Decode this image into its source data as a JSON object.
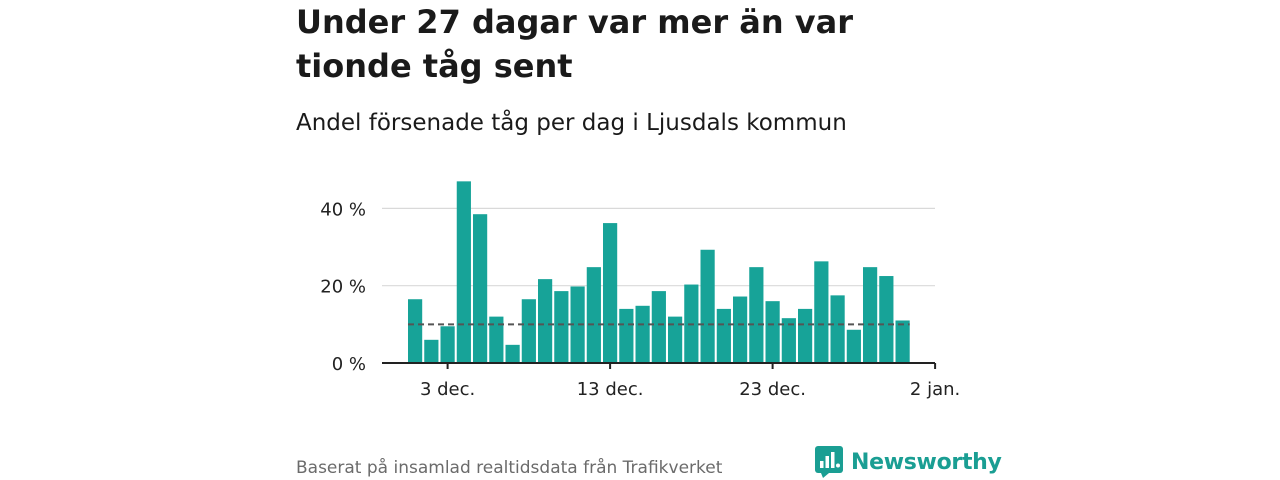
{
  "title": "Under 27 dagar var mer än var tionde tåg sent",
  "subtitle": "Andel försenade tåg per dag i Ljusdals kommun",
  "source": "Baserat på insamlad realtidsdata från Trafikverket",
  "brand": {
    "name": "Newsworthy",
    "color": "#1a9e93"
  },
  "colors": {
    "bar": "#17a398",
    "reference_line": "#555555",
    "grid": "#d9d9d9",
    "axis": "#222222"
  },
  "chart_data": {
    "type": "bar",
    "title": "Under 27 dagar var mer än var tionde tåg sent",
    "subtitle": "Andel försenade tåg per dag i Ljusdals kommun",
    "xlabel": "",
    "ylabel": "",
    "x": [
      "1 dec.",
      "2 dec.",
      "3 dec.",
      "4 dec.",
      "5 dec.",
      "6 dec.",
      "7 dec.",
      "8 dec.",
      "9 dec.",
      "10 dec.",
      "11 dec.",
      "12 dec.",
      "13 dec.",
      "14 dec.",
      "15 dec.",
      "16 dec.",
      "17 dec.",
      "18 dec.",
      "19 dec.",
      "20 dec.",
      "21 dec.",
      "22 dec.",
      "23 dec.",
      "24 dec.",
      "25 dec.",
      "26 dec.",
      "27 dec.",
      "28 dec.",
      "29 dec.",
      "30 dec.",
      "31 dec."
    ],
    "values": [
      16.5,
      6,
      9.5,
      47,
      38.5,
      12,
      4.7,
      16.5,
      21.7,
      18.6,
      19.8,
      24.8,
      36.2,
      14,
      14.8,
      18.6,
      12,
      20.3,
      29.3,
      14,
      17.2,
      24.8,
      16,
      11.6,
      14,
      26.3,
      17.5,
      8.6,
      24.8,
      22.5,
      11
    ],
    "reference_line": 10,
    "x_ticks": [
      "3 dec.",
      "13 dec.",
      "23 dec.",
      "2 jan."
    ],
    "y_ticks": [
      "0 %",
      "20 %",
      "40 %"
    ],
    "y_tick_values": [
      0,
      20,
      40
    ],
    "ylim": [
      0,
      48
    ],
    "grid": true
  }
}
